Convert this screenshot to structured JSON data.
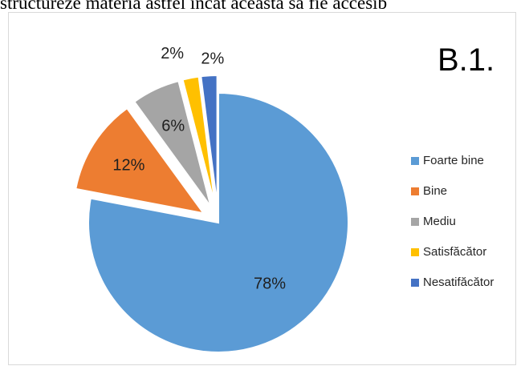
{
  "document": {
    "top_text": "structureze materia astfel încât aceasta să fie accesib"
  },
  "chart_data": {
    "type": "pie",
    "title": "B.1.",
    "categories": [
      "Foarte bine",
      "Bine",
      "Mediu",
      "Satisfăcător",
      "Nesatifăcător"
    ],
    "values": [
      78,
      12,
      6,
      2,
      2
    ],
    "labels": [
      "78%",
      "12%",
      "6%",
      "2%",
      "2%"
    ],
    "colors": [
      "#5b9bd5",
      "#ed7d31",
      "#a5a5a5",
      "#ffc000",
      "#4472c4"
    ],
    "exploded": [
      false,
      true,
      true,
      true,
      true
    ],
    "legend_position": "right"
  }
}
